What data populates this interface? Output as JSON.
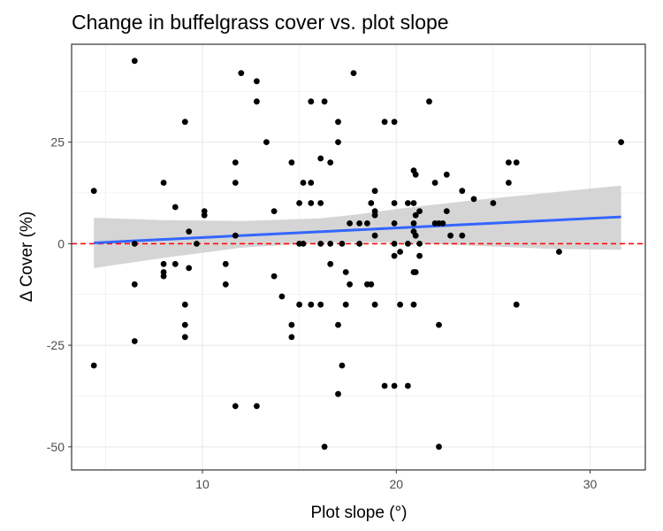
{
  "chart_data": {
    "type": "scatter",
    "title": "Change in buffelgrass cover vs. plot slope",
    "xlabel": "Plot slope (°)",
    "ylabel": "Δ Cover (%)",
    "xlim": [
      3.25,
      32.85
    ],
    "ylim": [
      -55.7,
      49.1
    ],
    "x_ticks": [
      10,
      20,
      30
    ],
    "y_ticks": [
      -50,
      -25,
      0,
      25
    ],
    "x_tick_labels": [
      "10",
      "20",
      "30"
    ],
    "y_tick_labels": [
      "-50",
      "-25",
      "0",
      "25"
    ],
    "grid": true,
    "legend": "none",
    "points": [
      {
        "x": 4.4,
        "y": 13
      },
      {
        "x": 4.4,
        "y": -30
      },
      {
        "x": 6.5,
        "y": 45
      },
      {
        "x": 6.5,
        "y": 0
      },
      {
        "x": 6.5,
        "y": -10
      },
      {
        "x": 6.5,
        "y": -24
      },
      {
        "x": 8.0,
        "y": 15
      },
      {
        "x": 8.0,
        "y": -5
      },
      {
        "x": 8.0,
        "y": -7
      },
      {
        "x": 8.0,
        "y": -8
      },
      {
        "x": 8.6,
        "y": 9
      },
      {
        "x": 8.6,
        "y": -5
      },
      {
        "x": 9.1,
        "y": 30
      },
      {
        "x": 9.1,
        "y": -15
      },
      {
        "x": 9.1,
        "y": -20
      },
      {
        "x": 9.1,
        "y": -23
      },
      {
        "x": 9.3,
        "y": 3
      },
      {
        "x": 9.3,
        "y": -6
      },
      {
        "x": 9.7,
        "y": 0
      },
      {
        "x": 10.1,
        "y": 7
      },
      {
        "x": 10.1,
        "y": 8
      },
      {
        "x": 11.2,
        "y": -5
      },
      {
        "x": 11.2,
        "y": -10
      },
      {
        "x": 11.7,
        "y": 20
      },
      {
        "x": 11.7,
        "y": 15
      },
      {
        "x": 11.7,
        "y": 2
      },
      {
        "x": 11.7,
        "y": -40
      },
      {
        "x": 12.0,
        "y": 42
      },
      {
        "x": 12.8,
        "y": 40
      },
      {
        "x": 12.8,
        "y": 35
      },
      {
        "x": 12.8,
        "y": -40
      },
      {
        "x": 13.3,
        "y": 25
      },
      {
        "x": 13.7,
        "y": 8
      },
      {
        "x": 13.7,
        "y": -8
      },
      {
        "x": 14.1,
        "y": -13
      },
      {
        "x": 14.6,
        "y": 20
      },
      {
        "x": 14.6,
        "y": -20
      },
      {
        "x": 14.6,
        "y": -23
      },
      {
        "x": 15.0,
        "y": 10
      },
      {
        "x": 15.0,
        "y": 0
      },
      {
        "x": 15.0,
        "y": -15
      },
      {
        "x": 15.2,
        "y": 15
      },
      {
        "x": 15.2,
        "y": 0
      },
      {
        "x": 15.6,
        "y": 35
      },
      {
        "x": 15.6,
        "y": 15
      },
      {
        "x": 15.6,
        "y": 10
      },
      {
        "x": 15.6,
        "y": -15
      },
      {
        "x": 16.1,
        "y": 21
      },
      {
        "x": 16.1,
        "y": 10
      },
      {
        "x": 16.1,
        "y": 0
      },
      {
        "x": 16.1,
        "y": -15
      },
      {
        "x": 16.3,
        "y": 35
      },
      {
        "x": 16.3,
        "y": -50
      },
      {
        "x": 16.6,
        "y": 20
      },
      {
        "x": 16.6,
        "y": 0
      },
      {
        "x": 16.6,
        "y": -5
      },
      {
        "x": 17.0,
        "y": 30
      },
      {
        "x": 17.0,
        "y": 25
      },
      {
        "x": 17.0,
        "y": -20
      },
      {
        "x": 17.0,
        "y": -37
      },
      {
        "x": 17.2,
        "y": 0
      },
      {
        "x": 17.2,
        "y": -30
      },
      {
        "x": 17.4,
        "y": -7
      },
      {
        "x": 17.4,
        "y": -15
      },
      {
        "x": 17.6,
        "y": -10
      },
      {
        "x": 17.6,
        "y": 5
      },
      {
        "x": 17.8,
        "y": 42
      },
      {
        "x": 18.1,
        "y": 0
      },
      {
        "x": 18.1,
        "y": 5
      },
      {
        "x": 18.5,
        "y": 5
      },
      {
        "x": 18.5,
        "y": -10
      },
      {
        "x": 18.7,
        "y": 10
      },
      {
        "x": 18.7,
        "y": -10
      },
      {
        "x": 18.9,
        "y": 13
      },
      {
        "x": 18.9,
        "y": 8
      },
      {
        "x": 18.9,
        "y": 7
      },
      {
        "x": 18.9,
        "y": 2
      },
      {
        "x": 18.9,
        "y": -15
      },
      {
        "x": 19.4,
        "y": 30
      },
      {
        "x": 19.4,
        "y": -35
      },
      {
        "x": 19.9,
        "y": 30
      },
      {
        "x": 19.9,
        "y": 10
      },
      {
        "x": 19.9,
        "y": 5
      },
      {
        "x": 19.9,
        "y": 0
      },
      {
        "x": 19.9,
        "y": -3
      },
      {
        "x": 19.9,
        "y": -35
      },
      {
        "x": 20.2,
        "y": -15
      },
      {
        "x": 20.2,
        "y": -2
      },
      {
        "x": 20.6,
        "y": 10
      },
      {
        "x": 20.6,
        "y": 0
      },
      {
        "x": 20.6,
        "y": -35
      },
      {
        "x": 20.9,
        "y": 18
      },
      {
        "x": 20.9,
        "y": 10
      },
      {
        "x": 20.9,
        "y": 5
      },
      {
        "x": 20.9,
        "y": 3
      },
      {
        "x": 20.9,
        "y": -7
      },
      {
        "x": 20.9,
        "y": -15
      },
      {
        "x": 21.0,
        "y": 17
      },
      {
        "x": 21.0,
        "y": 7
      },
      {
        "x": 21.0,
        "y": 2
      },
      {
        "x": 21.0,
        "y": -7
      },
      {
        "x": 21.2,
        "y": 8
      },
      {
        "x": 21.2,
        "y": 0
      },
      {
        "x": 21.2,
        "y": -3
      },
      {
        "x": 21.7,
        "y": 35
      },
      {
        "x": 22.0,
        "y": 15
      },
      {
        "x": 22.0,
        "y": 5
      },
      {
        "x": 22.2,
        "y": 5
      },
      {
        "x": 22.2,
        "y": -20
      },
      {
        "x": 22.2,
        "y": -50
      },
      {
        "x": 22.4,
        "y": 5
      },
      {
        "x": 22.6,
        "y": 17
      },
      {
        "x": 22.6,
        "y": 8
      },
      {
        "x": 22.8,
        "y": 2
      },
      {
        "x": 23.4,
        "y": 13
      },
      {
        "x": 23.4,
        "y": 2
      },
      {
        "x": 24.0,
        "y": 11
      },
      {
        "x": 25.0,
        "y": 10
      },
      {
        "x": 25.8,
        "y": 20
      },
      {
        "x": 25.8,
        "y": 15
      },
      {
        "x": 26.2,
        "y": 20
      },
      {
        "x": 26.2,
        "y": -15
      },
      {
        "x": 28.4,
        "y": -2
      },
      {
        "x": 31.6,
        "y": 25
      }
    ],
    "trend": {
      "x": [
        4.4,
        31.6
      ],
      "y": [
        0.2,
        6.6
      ]
    },
    "confidence_band": {
      "x": [
        4.4,
        8,
        12,
        16,
        18,
        20,
        24,
        28,
        31.6
      ],
      "lower": [
        -6,
        -3.5,
        -1,
        0.2,
        0.4,
        0.3,
        -0.5,
        -1.3,
        -1.5
      ],
      "upper": [
        6.4,
        5.8,
        5.6,
        6.2,
        7.2,
        8.5,
        10.7,
        12.6,
        14.3
      ]
    },
    "reference_line_y": 0,
    "colors": {
      "points": "#000000",
      "trend": "#3366FF",
      "band": "#d3d3d3",
      "reference": "#ff0000",
      "grid": "#ebebeb",
      "panel_border": "#333333"
    }
  }
}
